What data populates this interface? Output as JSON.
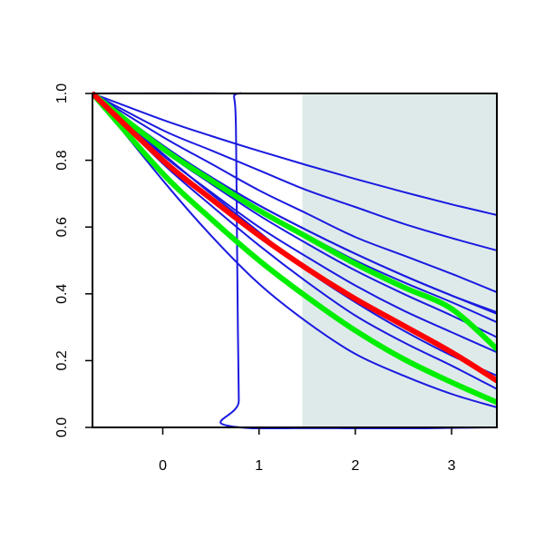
{
  "chart_data": {
    "type": "line",
    "title": "",
    "xlabel": "",
    "ylabel": "",
    "xlim": [
      -0.73,
      3.47
    ],
    "ylim": [
      0.0,
      1.0
    ],
    "x_ticks": [
      {
        "value": 0,
        "label": "0"
      },
      {
        "value": 1,
        "label": "1"
      },
      {
        "value": 2,
        "label": "2"
      },
      {
        "value": 3,
        "label": "3"
      }
    ],
    "y_ticks": [
      {
        "value": 0.0,
        "label": "0.0"
      },
      {
        "value": 0.2,
        "label": "0.2"
      },
      {
        "value": 0.4,
        "label": "0.4"
      },
      {
        "value": 0.6,
        "label": "0.6"
      },
      {
        "value": 0.8,
        "label": "0.8"
      },
      {
        "value": 1.0,
        "label": "1.0"
      }
    ],
    "shaded_region": {
      "x_start": 1.45,
      "x_end": 3.47,
      "color": "#deeaea"
    },
    "grid": false,
    "series": [
      {
        "color": "#1a1ae0",
        "width": 2,
        "x": [
          -0.73,
          0.7,
          0.74,
          0.76,
          0.77,
          0.78,
          0.79,
          0.8,
          3.47
        ],
        "y": [
          1.0,
          1.0,
          0.99,
          0.9,
          0.6,
          0.3,
          0.08,
          0.0,
          0.0
        ]
      },
      {
        "color": "#1a1ae0",
        "width": 2,
        "x": [
          -0.73,
          0.0,
          0.5,
          1.0,
          1.5,
          2.0,
          2.5,
          3.0,
          3.47
        ],
        "y": [
          1.0,
          0.921,
          0.873,
          0.828,
          0.785,
          0.744,
          0.705,
          0.668,
          0.636
        ]
      },
      {
        "color": "#1a1ae0",
        "width": 2,
        "x": [
          -0.73,
          0.0,
          0.5,
          1.0,
          1.5,
          2.0,
          2.5,
          3.0,
          3.47
        ],
        "y": [
          1.0,
          0.89,
          0.83,
          0.77,
          0.71,
          0.66,
          0.61,
          0.567,
          0.53
        ]
      },
      {
        "color": "#1a1ae0",
        "width": 2,
        "x": [
          -0.73,
          0.0,
          0.5,
          1.0,
          1.5,
          2.0,
          2.5,
          3.0,
          3.47
        ],
        "y": [
          1.0,
          0.87,
          0.79,
          0.71,
          0.64,
          0.57,
          0.515,
          0.46,
          0.405
        ]
      },
      {
        "color": "#1a1ae0",
        "width": 2,
        "x": [
          -0.73,
          0.0,
          0.5,
          1.0,
          1.5,
          2.0,
          2.5,
          3.0,
          3.47
        ],
        "y": [
          1.0,
          0.84,
          0.75,
          0.665,
          0.59,
          0.52,
          0.455,
          0.395,
          0.345
        ]
      },
      {
        "color": "#1a1ae0",
        "width": 2,
        "x": [
          -0.73,
          0.0,
          0.5,
          1.0,
          1.5,
          2.0,
          2.5,
          3.0,
          3.47
        ],
        "y": [
          1.0,
          0.845,
          0.75,
          0.665,
          0.59,
          0.52,
          0.455,
          0.395,
          0.34
        ]
      },
      {
        "color": "#1a1ae0",
        "width": 2,
        "x": [
          -0.73,
          0.0,
          0.5,
          1.0,
          1.5,
          2.0,
          2.5,
          3.0,
          3.47
        ],
        "y": [
          1.0,
          0.84,
          0.745,
          0.655,
          0.575,
          0.5,
          0.435,
          0.375,
          0.315
        ]
      },
      {
        "color": "#1a1ae0",
        "width": 2,
        "x": [
          -0.73,
          0.0,
          0.5,
          1.0,
          1.5,
          2.0,
          2.5,
          3.0,
          3.47
        ],
        "y": [
          1.0,
          0.83,
          0.73,
          0.635,
          0.55,
          0.47,
          0.4,
          0.335,
          0.27
        ]
      },
      {
        "color": "#1a1ae0",
        "width": 2,
        "x": [
          -0.73,
          0.0,
          0.5,
          1.0,
          1.5,
          2.0,
          2.5,
          3.0,
          3.47
        ],
        "y": [
          1.0,
          0.815,
          0.705,
          0.6,
          0.51,
          0.425,
          0.35,
          0.285,
          0.225
        ]
      },
      {
        "color": "#1a1ae0",
        "width": 2,
        "x": [
          -0.73,
          0.0,
          0.5,
          1.0,
          1.5,
          2.0,
          2.5,
          3.0,
          3.47
        ],
        "y": [
          1.0,
          0.82,
          0.7,
          0.585,
          0.47,
          0.375,
          0.29,
          0.215,
          0.155
        ]
      },
      {
        "color": "#1a1ae0",
        "width": 2,
        "x": [
          -0.73,
          0.0,
          0.5,
          1.0,
          1.5,
          2.0,
          2.5,
          3.0,
          3.47
        ],
        "y": [
          1.0,
          0.79,
          0.665,
          0.545,
          0.435,
          0.335,
          0.255,
          0.185,
          0.115
        ]
      },
      {
        "color": "#1a1ae0",
        "width": 2,
        "x": [
          -0.73,
          0.0,
          0.5,
          1.0,
          1.5,
          2.0,
          2.5,
          3.0,
          3.47
        ],
        "y": [
          1.0,
          0.74,
          0.575,
          0.43,
          0.315,
          0.22,
          0.155,
          0.1,
          0.06
        ]
      },
      {
        "color": "#00ee00",
        "width": 6,
        "x": [
          -0.73,
          0.0,
          0.5,
          1.0,
          1.5,
          2.0,
          2.5,
          3.0,
          3.47
        ],
        "y": [
          1.0,
          0.835,
          0.74,
          0.65,
          0.57,
          0.49,
          0.42,
          0.355,
          0.235
        ]
      },
      {
        "color": "#00ee00",
        "width": 6,
        "x": [
          -0.73,
          0.0,
          0.5,
          1.0,
          1.5,
          2.0,
          2.5,
          3.0,
          3.47
        ],
        "y": [
          1.0,
          0.76,
          0.625,
          0.5,
          0.39,
          0.29,
          0.205,
          0.135,
          0.075
        ]
      },
      {
        "color": "#ff0000",
        "width": 6,
        "x": [
          -0.73,
          0.0,
          0.5,
          1.0,
          1.5,
          2.0,
          2.5,
          3.0,
          3.47
        ],
        "y": [
          1.0,
          0.8,
          0.685,
          0.575,
          0.475,
          0.385,
          0.305,
          0.225,
          0.14
        ]
      }
    ]
  }
}
